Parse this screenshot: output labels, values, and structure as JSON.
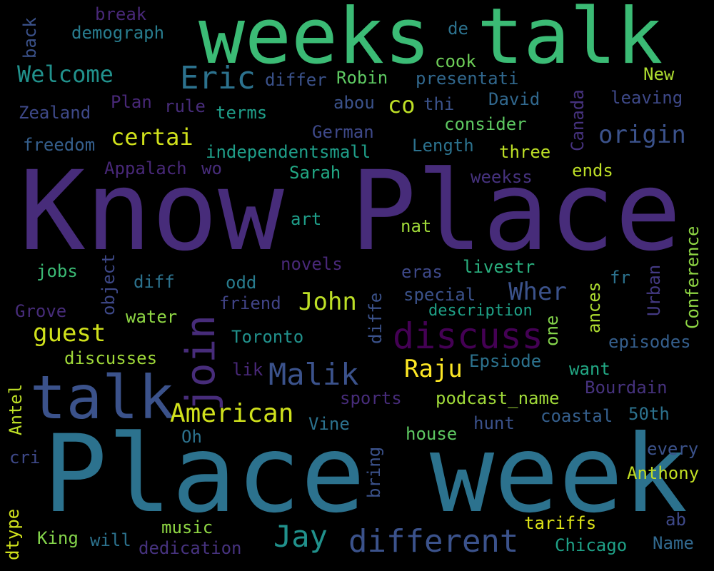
{
  "words": [
    {
      "text": "Know Place",
      "color": "#472c7a"
    },
    {
      "text": "Place week",
      "color": "#2c728e"
    },
    {
      "text": "weeks talk",
      "color": "#3bbb75"
    },
    {
      "text": "talk",
      "color": "#3b528b"
    },
    {
      "text": "join",
      "color": "#472c7a"
    },
    {
      "text": "discuss",
      "color": "#440154"
    },
    {
      "text": "different",
      "color": "#3b528b"
    },
    {
      "text": "Eric",
      "color": "#2c728e"
    },
    {
      "text": "Malik",
      "color": "#3b528b"
    },
    {
      "text": "American",
      "color": "#d0e11c"
    },
    {
      "text": "Jay",
      "color": "#21918c"
    },
    {
      "text": "origin",
      "color": "#3b528b"
    },
    {
      "text": "certai",
      "color": "#d0e11c"
    },
    {
      "text": "Welcome",
      "color": "#21918c"
    },
    {
      "text": "guest",
      "color": "#d0e11c"
    },
    {
      "text": "John",
      "color": "#bddf26"
    },
    {
      "text": "Raju",
      "color": "#fde725"
    },
    {
      "text": "Wher",
      "color": "#3b528b"
    },
    {
      "text": "co",
      "color": "#bddf26"
    },
    {
      "text": "break",
      "color": "#482878"
    },
    {
      "text": "demograph",
      "color": "#287c8e"
    },
    {
      "text": "de",
      "color": "#2c728e"
    },
    {
      "text": "cook",
      "color": "#6ece58"
    },
    {
      "text": "back",
      "color": "#3b528b"
    },
    {
      "text": "differ",
      "color": "#3b528b"
    },
    {
      "text": "Robin",
      "color": "#5ec962"
    },
    {
      "text": "presentati",
      "color": "#31688e"
    },
    {
      "text": "New",
      "color": "#addc30"
    },
    {
      "text": "Zealand",
      "color": "#3e4989"
    },
    {
      "text": "Plan",
      "color": "#482878"
    },
    {
      "text": "rule",
      "color": "#472c7a"
    },
    {
      "text": "terms",
      "color": "#1f9e89"
    },
    {
      "text": "abou",
      "color": "#3b528b"
    },
    {
      "text": "thi",
      "color": "#3b528b"
    },
    {
      "text": "David",
      "color": "#31688e"
    },
    {
      "text": "leaving",
      "color": "#3e4989"
    },
    {
      "text": "consider",
      "color": "#5ec962"
    },
    {
      "text": "German",
      "color": "#3e4989"
    },
    {
      "text": "freedom",
      "color": "#355f8d"
    },
    {
      "text": "independentsmall",
      "color": "#1f9e89"
    },
    {
      "text": "Length",
      "color": "#2c728e"
    },
    {
      "text": "three",
      "color": "#bddf26"
    },
    {
      "text": "Canada",
      "color": "#46327e"
    },
    {
      "text": "Appalach",
      "color": "#482878"
    },
    {
      "text": "wo",
      "color": "#472c7a"
    },
    {
      "text": "Sarah",
      "color": "#22a884"
    },
    {
      "text": "weekss",
      "color": "#46327e"
    },
    {
      "text": "ends",
      "color": "#bddf26"
    },
    {
      "text": "art",
      "color": "#1f9e89"
    },
    {
      "text": "nat",
      "color": "#a0da39"
    },
    {
      "text": "Conference",
      "color": "#8fd744"
    },
    {
      "text": "jobs",
      "color": "#3bbb75"
    },
    {
      "text": "object",
      "color": "#3e4989"
    },
    {
      "text": "novels",
      "color": "#482878"
    },
    {
      "text": "eras",
      "color": "#3e4989"
    },
    {
      "text": "livestr",
      "color": "#2ab07f"
    },
    {
      "text": "diff",
      "color": "#2c728e"
    },
    {
      "text": "odd",
      "color": "#287c8e"
    },
    {
      "text": "fr",
      "color": "#2c728e"
    },
    {
      "text": "Urban",
      "color": "#443a83"
    },
    {
      "text": "Grove",
      "color": "#472c7a"
    },
    {
      "text": "friend",
      "color": "#414487"
    },
    {
      "text": "special",
      "color": "#3b528b"
    },
    {
      "text": "water",
      "color": "#8fd744"
    },
    {
      "text": "diffe",
      "color": "#3b528b"
    },
    {
      "text": "description",
      "color": "#1fa187"
    },
    {
      "text": "ances",
      "color": "#addc30"
    },
    {
      "text": "one",
      "color": "#84d44b"
    },
    {
      "text": "Toronto",
      "color": "#21918c"
    },
    {
      "text": "episodes",
      "color": "#355f8d"
    },
    {
      "text": "discusses",
      "color": "#a0da39"
    },
    {
      "text": "Epsiode",
      "color": "#2c728e"
    },
    {
      "text": "lik",
      "color": "#482878"
    },
    {
      "text": "want",
      "color": "#22a884"
    },
    {
      "text": "Antel",
      "color": "#bddf26"
    },
    {
      "text": "Bourdain",
      "color": "#46327e"
    },
    {
      "text": "sports",
      "color": "#472c7a"
    },
    {
      "text": "podcast_name",
      "color": "#a0da39"
    },
    {
      "text": "coastal",
      "color": "#355f8d"
    },
    {
      "text": "50th",
      "color": "#2c728e"
    },
    {
      "text": "Oh",
      "color": "#2c728e"
    },
    {
      "text": "Vine",
      "color": "#2c728e"
    },
    {
      "text": "hunt",
      "color": "#3b528b"
    },
    {
      "text": "house",
      "color": "#5ec962"
    },
    {
      "text": "cri",
      "color": "#3e4989"
    },
    {
      "text": "bring",
      "color": "#3b528b"
    },
    {
      "text": "every",
      "color": "#3b528b"
    },
    {
      "text": "Anthony",
      "color": "#c2df23"
    },
    {
      "text": "dtype",
      "color": "#d0e11c"
    },
    {
      "text": "King",
      "color": "#84d44b"
    },
    {
      "text": "will",
      "color": "#2c728e"
    },
    {
      "text": "music",
      "color": "#8fd744"
    },
    {
      "text": "dedication",
      "color": "#46327e"
    },
    {
      "text": "tariffs",
      "color": "#dde318"
    },
    {
      "text": "ab",
      "color": "#3e4989"
    },
    {
      "text": "Chicago",
      "color": "#1fa187"
    },
    {
      "text": "Name",
      "color": "#31688e"
    }
  ]
}
